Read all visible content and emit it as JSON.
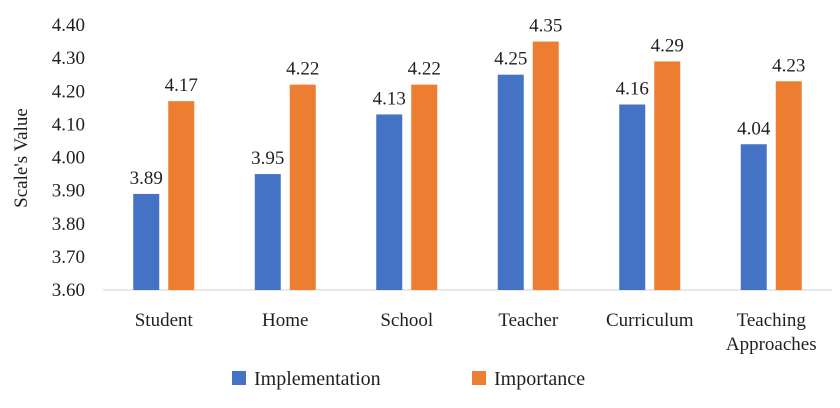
{
  "chart_data": {
    "type": "bar",
    "categories": [
      [
        "Student"
      ],
      [
        "Home"
      ],
      [
        "School"
      ],
      [
        "Teacher"
      ],
      [
        "Curriculum"
      ],
      [
        "Teaching",
        "Approaches"
      ]
    ],
    "series": [
      {
        "name": "Implementation",
        "values": [
          3.89,
          3.95,
          4.13,
          4.25,
          4.16,
          4.04
        ],
        "labels": [
          "3.89",
          "3.95",
          "4.13",
          "4.25",
          "4.16",
          "4.04"
        ],
        "color": "#4472C4"
      },
      {
        "name": "Importance",
        "values": [
          4.17,
          4.22,
          4.22,
          4.35,
          4.29,
          4.23
        ],
        "labels": [
          "4.17",
          "4.22",
          "4.22",
          "4.35",
          "4.29",
          "4.23"
        ],
        "color": "#ED7D31"
      }
    ],
    "ylabel": "Scale's Value",
    "ylim": [
      3.6,
      4.4
    ],
    "yticks": [
      "3.60",
      "3.70",
      "3.80",
      "3.90",
      "4.00",
      "4.10",
      "4.20",
      "4.30",
      "4.40"
    ],
    "grid": false,
    "legend_position": "bottom"
  }
}
